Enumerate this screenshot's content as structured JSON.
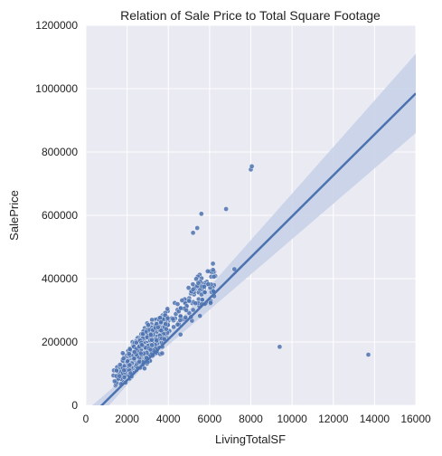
{
  "chart_data": {
    "type": "scatter",
    "title": "Relation of Sale Price to Total Square Footage",
    "xlabel": "LivingTotalSF",
    "ylabel": "SalePrice",
    "xlim": [
      0,
      16000
    ],
    "ylim": [
      0,
      1200000
    ],
    "xticks": [
      0,
      2000,
      4000,
      6000,
      8000,
      10000,
      12000,
      14000,
      16000
    ],
    "yticks": [
      0,
      200000,
      400000,
      600000,
      800000,
      1000000,
      1200000
    ],
    "grid": true,
    "point_color": "#4c72b0",
    "band_color": "#c5d0e6",
    "background_color": "#eaeaf2",
    "regression_line": {
      "x": [
        0,
        16000
      ],
      "y": [
        -50000,
        985000
      ],
      "ci_at_x_max": [
        840000,
        1090000
      ]
    },
    "cluster": {
      "x_range": [
        400,
        7500
      ],
      "center_x": 2800,
      "typical_price": 180000,
      "approx_point_count": 1460
    },
    "outliers": [
      {
        "x": 8000,
        "y": 745000
      },
      {
        "x": 8050,
        "y": 755000
      },
      {
        "x": 6800,
        "y": 620000
      },
      {
        "x": 5600,
        "y": 605000
      },
      {
        "x": 5400,
        "y": 560000
      },
      {
        "x": 5200,
        "y": 545000
      },
      {
        "x": 7200,
        "y": 430000
      },
      {
        "x": 9400,
        "y": 185000
      },
      {
        "x": 13700,
        "y": 160000
      }
    ]
  }
}
